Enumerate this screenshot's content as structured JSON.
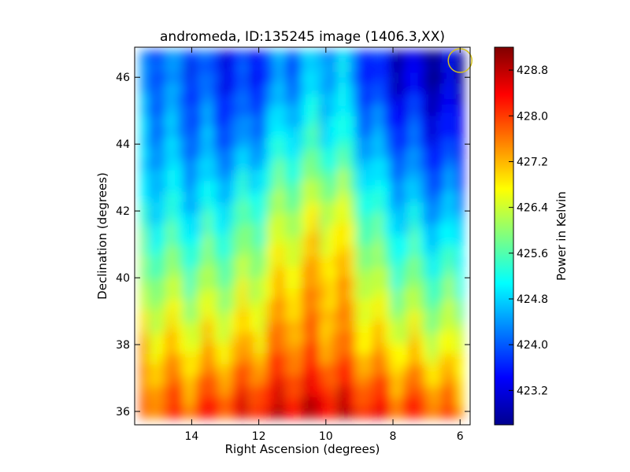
{
  "chart_data": {
    "type": "heatmap",
    "title": "andromeda, ID:135245 image (1406.3,XX)",
    "xlabel": "Right Ascension (degrees)",
    "ylabel": "Declination (degrees)",
    "colorbar_label": "Power in Kelvin",
    "xlim": [
      15.7,
      5.7
    ],
    "ylim": [
      35.6,
      46.9
    ],
    "x_ticks": [
      14,
      12,
      10,
      8,
      6
    ],
    "x_tick_labels": [
      "14",
      "12",
      "10",
      "8",
      "6"
    ],
    "y_ticks": [
      36,
      38,
      40,
      42,
      44,
      46
    ],
    "y_tick_labels": [
      "36",
      "38",
      "40",
      "42",
      "44",
      "46"
    ],
    "colorbar_range": [
      422.6,
      429.2
    ],
    "colorbar_ticks": [
      423.2,
      424.0,
      424.8,
      425.6,
      426.4,
      427.2,
      428.0,
      428.8
    ],
    "colorbar_tick_labels": [
      "423.2",
      "424.0",
      "424.8",
      "425.6",
      "426.4",
      "427.2",
      "428.0",
      "428.8"
    ],
    "colormap": "jet",
    "marker": {
      "shape": "circle",
      "ra": 6.0,
      "dec": 46.5,
      "color": "#d4c11d"
    },
    "grid": false,
    "value_trend": "high (~428-429 K) near Dec 36, decreasing to low (~423 K) near Dec 46.5; brighter vertical streaks near RA 10-12",
    "sample_grid": {
      "ra": [
        15.3,
        13.9,
        12.5,
        11.1,
        9.7,
        8.3,
        6.9,
        6.0
      ],
      "dec": [
        36.0,
        38.0,
        40.0,
        42.0,
        44.0,
        46.0
      ],
      "values": [
        [
          427.8,
          428.0,
          428.3,
          428.6,
          428.7,
          428.1,
          428.0,
          427.6
        ],
        [
          427.0,
          426.8,
          427.0,
          427.6,
          427.5,
          426.9,
          426.6,
          426.4
        ],
        [
          426.0,
          425.9,
          426.1,
          427.0,
          427.3,
          425.9,
          425.6,
          425.4
        ],
        [
          425.1,
          424.9,
          425.3,
          426.2,
          426.6,
          425.0,
          424.6,
          424.4
        ],
        [
          424.6,
          424.3,
          424.2,
          425.2,
          425.3,
          424.2,
          423.7,
          423.4
        ],
        [
          424.3,
          423.9,
          423.5,
          424.3,
          424.8,
          423.3,
          423.0,
          422.9
        ]
      ]
    }
  }
}
